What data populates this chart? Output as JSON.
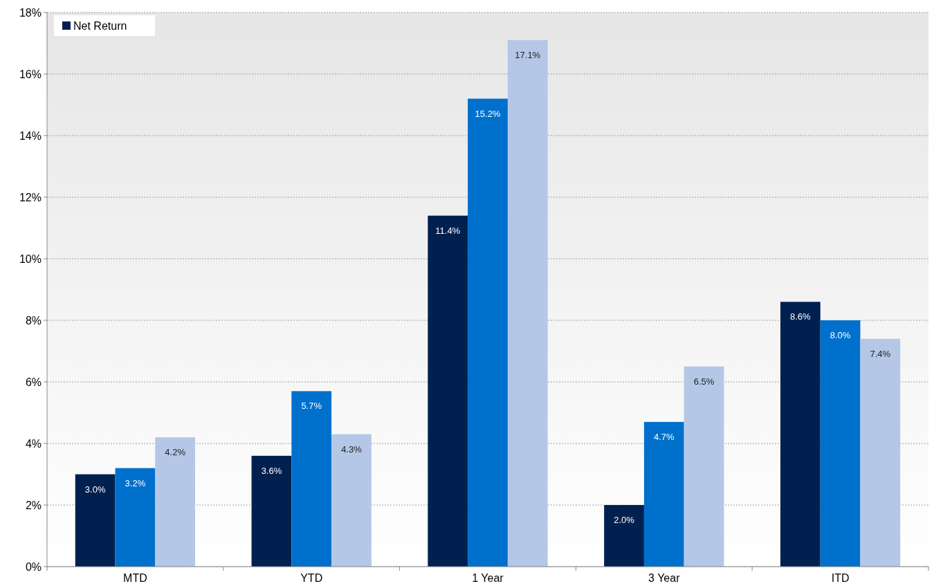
{
  "chart_data": {
    "type": "bar",
    "categories": [
      "MTD",
      "YTD",
      "1 Year",
      "3 Year",
      "ITD"
    ],
    "series": [
      {
        "name": "Net Return",
        "color": "#002050",
        "values": [
          3.0,
          3.6,
          11.4,
          2.0,
          8.6
        ],
        "value_labels": [
          "3.0%",
          "3.6%",
          "11.4%",
          "2.0%",
          "8.6%"
        ]
      },
      {
        "color": "#0070cd",
        "values": [
          3.2,
          5.7,
          15.2,
          4.7,
          8.0
        ],
        "value_labels": [
          "3.2%",
          "5.7%",
          "15.2%",
          "4.7%",
          "8.0%"
        ]
      },
      {
        "color": "#b4c7e7",
        "values": [
          4.2,
          4.3,
          17.1,
          6.5,
          7.4
        ],
        "value_labels": [
          "4.2%",
          "4.3%",
          "17.1%",
          "6.5%",
          "7.4%"
        ]
      }
    ],
    "ylim": [
      0,
      18
    ],
    "yticks": [
      {
        "value": 0,
        "label": "0%"
      },
      {
        "value": 2,
        "label": "2%"
      },
      {
        "value": 4,
        "label": "4%"
      },
      {
        "value": 6,
        "label": "6%"
      },
      {
        "value": 8,
        "label": "8%"
      },
      {
        "value": 10,
        "label": "10%"
      },
      {
        "value": 12,
        "label": "12%"
      },
      {
        "value": 14,
        "label": "14%"
      },
      {
        "value": 16,
        "label": "16%"
      },
      {
        "value": 18,
        "label": "18%"
      }
    ],
    "grid": "y",
    "legend": "top left"
  }
}
